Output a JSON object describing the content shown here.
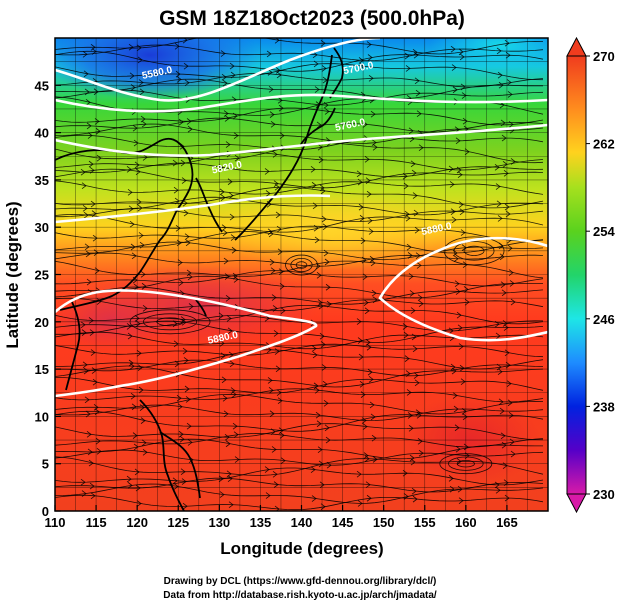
{
  "figure": {
    "title": "GSM 18Z18Oct2023 (500.0hPa)",
    "credit_line1": "Drawing by DCL (https://www.gfd-dennou.org/library/dcl/)",
    "credit_line2": "Data from http://database.rish.kyoto-u.ac.jp/arch/jmadata/"
  },
  "map": {
    "xlabel": "Longitude (degrees)",
    "ylabel": "Latitude  (degrees)",
    "lon_range": [
      110,
      170
    ],
    "lat_range": [
      0,
      50
    ],
    "lon_ticks": [
      "110",
      "115",
      "120",
      "125",
      "130",
      "135",
      "140",
      "145",
      "150",
      "155",
      "160",
      "165"
    ],
    "lat_ticks": [
      "0",
      "5",
      "10",
      "15",
      "20",
      "25",
      "30",
      "35",
      "40",
      "45"
    ],
    "contour_labels": [
      {
        "text": "5580.0",
        "lon": 122.5,
        "lat": 46.0
      },
      {
        "text": "5700.0",
        "lon": 147.0,
        "lat": 46.5
      },
      {
        "text": "5760.0",
        "lon": 146.0,
        "lat": 40.5
      },
      {
        "text": "5820.0",
        "lon": 131.0,
        "lat": 36.0
      },
      {
        "text": "5880.0",
        "lon": 156.5,
        "lat": 29.5
      },
      {
        "text": "5880.0",
        "lon": 130.5,
        "lat": 18.0
      }
    ]
  },
  "colorbar": {
    "ticks": [
      "230",
      "238",
      "246",
      "254",
      "262",
      "270"
    ],
    "colors": [
      "#d81aa8",
      "#5500c8",
      "#0022e0",
      "#1e8cff",
      "#1ee6e6",
      "#22d46a",
      "#5ad21e",
      "#a6e01e",
      "#ffd21e",
      "#ff8c1e",
      "#ff4422",
      "#e63c1e"
    ]
  }
}
